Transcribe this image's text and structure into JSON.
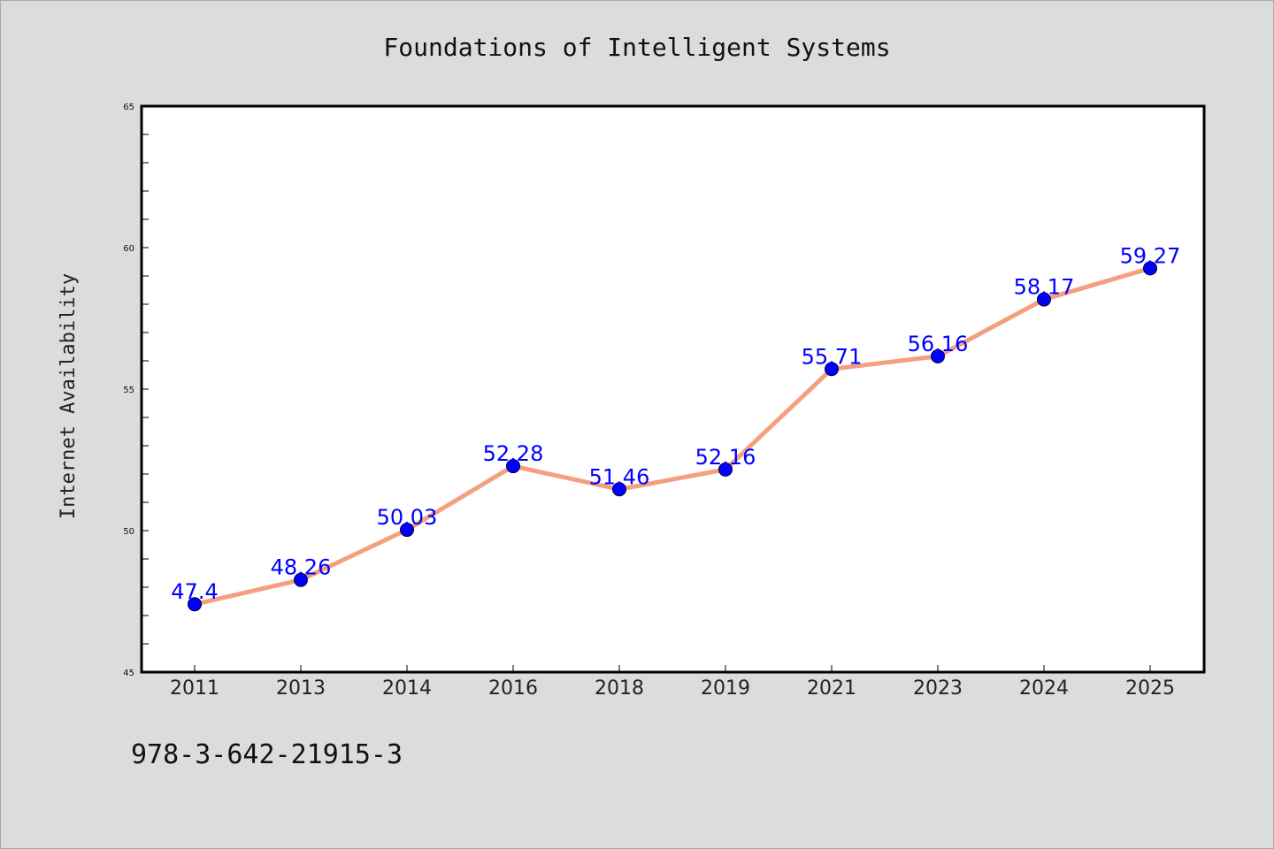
{
  "chart_data": {
    "type": "line",
    "title": "Foundations of Intelligent Systems",
    "xlabel": "",
    "ylabel": "Internet Availability",
    "categories": [
      "2011",
      "2013",
      "2014",
      "2016",
      "2018",
      "2019",
      "2021",
      "2023",
      "2024",
      "2025"
    ],
    "series": [
      {
        "values": [
          47.4,
          48.26,
          50.03,
          52.28,
          51.46,
          52.16,
          55.71,
          56.16,
          58.17,
          59.27
        ],
        "labels": [
          "47.4",
          "48.26",
          "50.03",
          "52.28",
          "51.46",
          "52.16",
          "55.71",
          "56.16",
          "58.17",
          "59.27"
        ]
      }
    ],
    "ylim": [
      45,
      65
    ],
    "yticks": [
      "45",
      "50",
      "55",
      "60",
      "65"
    ],
    "grid": false,
    "legend": "none",
    "colors": {
      "line": "#f4a07e",
      "marker": "#0000ff",
      "label": "#0000ff",
      "background": "#dcdcdc",
      "plot_background": "#ffffff"
    }
  },
  "footer": {
    "isbn": "978-3-642-21915-3"
  }
}
